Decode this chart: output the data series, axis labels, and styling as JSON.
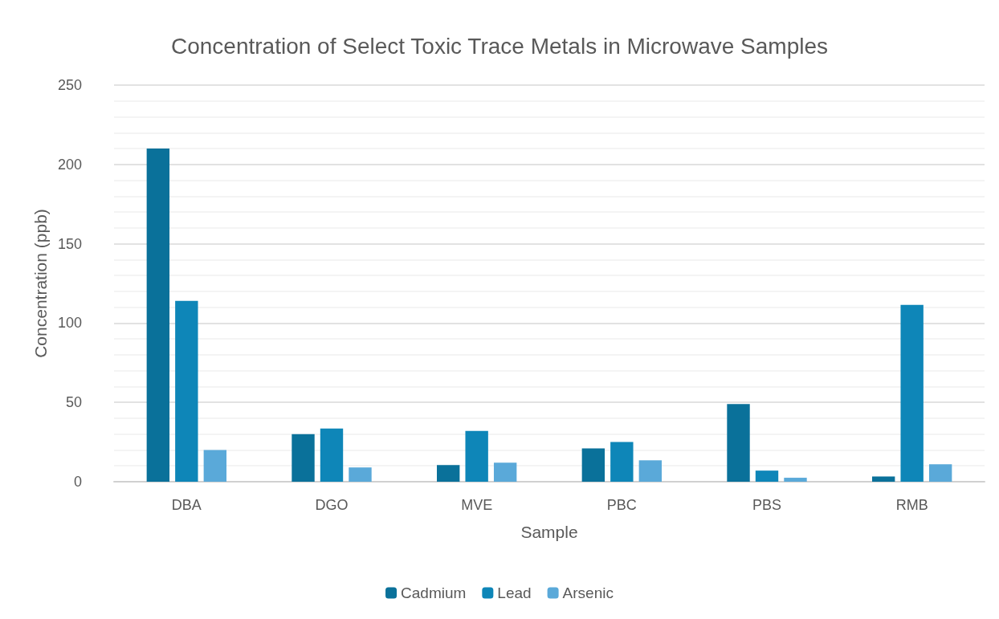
{
  "chart_data": {
    "type": "bar",
    "title": "Concentration of Select Toxic Trace Metals in Microwave Samples",
    "xlabel": "Sample",
    "ylabel": "Concentration (ppb)",
    "categories": [
      "DBA",
      "DGO",
      "MVE",
      "PBC",
      "PBS",
      "RMB"
    ],
    "series": [
      {
        "name": "Cadmium",
        "color": "#0a719a",
        "values": [
          210,
          30,
          10.5,
          21,
          49,
          3.3
        ]
      },
      {
        "name": "Lead",
        "color": "#0e86b8",
        "values": [
          114,
          33.5,
          32,
          25,
          7,
          111.5
        ]
      },
      {
        "name": "Arsenic",
        "color": "#5aa9d9",
        "values": [
          20,
          9,
          12,
          13.5,
          2.5,
          11
        ]
      }
    ],
    "ylim": [
      0,
      250
    ],
    "yticks": [
      0,
      50,
      100,
      150,
      200,
      250
    ],
    "grid": "y",
    "legend": "bottom"
  }
}
